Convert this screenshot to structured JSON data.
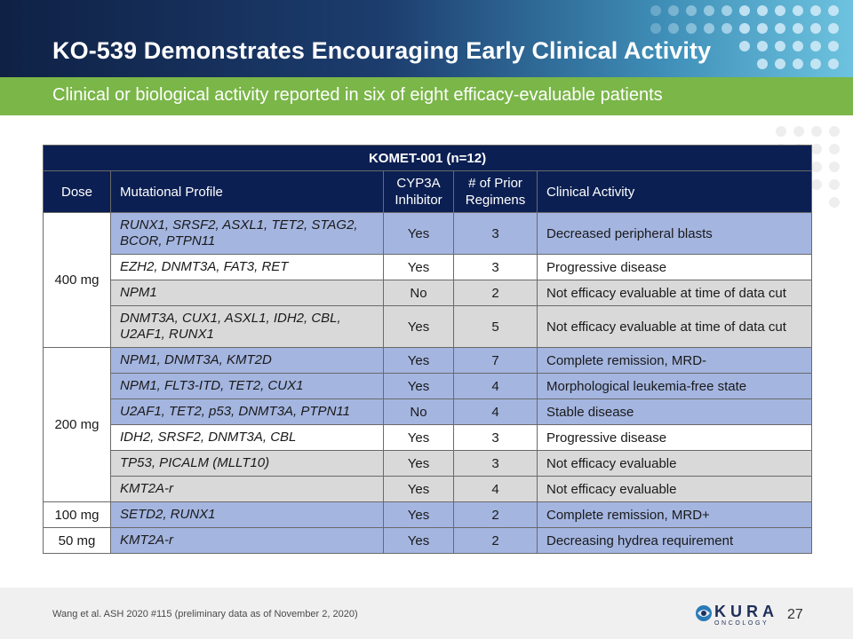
{
  "slide": {
    "title": "KO-539 Demonstrates Encouraging Early Clinical Activity",
    "subtitle": "Clinical or biological activity reported in six of eight efficacy-evaluable patients",
    "citation": "Wang et al. ASH 2020 #115 (preliminary data as of November 2, 2020)",
    "page_number": "27",
    "logo": {
      "name": "KURA",
      "sub": "ONCOLOGY"
    },
    "colors": {
      "header_dark": "#0f2145",
      "subtitle_green": "#7ab648",
      "table_header": "#0b1f52",
      "row_blue": "#a4b5e0",
      "row_gray": "#d9d9d9"
    }
  },
  "table": {
    "caption": "KOMET-001 (n=12)",
    "headers": {
      "dose": "Dose",
      "mutational_profile": "Mutational Profile",
      "cyp3a_inhibitor": "CYP3A Inhibitor",
      "prior_regimens": "# of Prior Regimens",
      "clinical_activity": "Clinical Activity"
    },
    "dose_groups": [
      "400 mg",
      "200 mg",
      "100 mg",
      "50 mg"
    ],
    "rows": [
      {
        "mutations": "RUNX1, SRSF2, ASXL1, TET2, STAG2, BCOR, PTPN11",
        "cyp3a": "Yes",
        "prior": "3",
        "activity": "Decreased peripheral blasts"
      },
      {
        "mutations": "EZH2, DNMT3A, FAT3, RET",
        "cyp3a": "Yes",
        "prior": "3",
        "activity": "Progressive disease"
      },
      {
        "mutations": "NPM1",
        "cyp3a": "No",
        "prior": "2",
        "activity": "Not efficacy evaluable at time of data cut"
      },
      {
        "mutations": "DNMT3A, CUX1, ASXL1, IDH2, CBL, U2AF1, RUNX1",
        "cyp3a": "Yes",
        "prior": "5",
        "activity": "Not efficacy evaluable at time of data cut"
      },
      {
        "mutations": "NPM1, DNMT3A, KMT2D",
        "cyp3a": "Yes",
        "prior": "7",
        "activity": "Complete remission, MRD-"
      },
      {
        "mutations": "NPM1, FLT3-ITD, TET2, CUX1",
        "cyp3a": "Yes",
        "prior": "4",
        "activity": "Morphological leukemia-free state"
      },
      {
        "mutations": "U2AF1, TET2, p53, DNMT3A, PTPN11",
        "cyp3a": "No",
        "prior": "4",
        "activity": "Stable disease"
      },
      {
        "mutations": "IDH2, SRSF2, DNMT3A, CBL",
        "cyp3a": "Yes",
        "prior": "3",
        "activity": "Progressive disease"
      },
      {
        "mutations": "TP53, PICALM (MLLT10)",
        "cyp3a": "Yes",
        "prior": "3",
        "activity": "Not efficacy evaluable"
      },
      {
        "mutations": "KMT2A-r",
        "cyp3a": "Yes",
        "prior": "4",
        "activity": "Not efficacy evaluable"
      },
      {
        "mutations": "SETD2, RUNX1",
        "cyp3a": "Yes",
        "prior": "2",
        "activity": "Complete remission, MRD+"
      },
      {
        "mutations": "KMT2A-r",
        "cyp3a": "Yes",
        "prior": "2",
        "activity": "Decreasing hydrea requirement"
      }
    ]
  }
}
